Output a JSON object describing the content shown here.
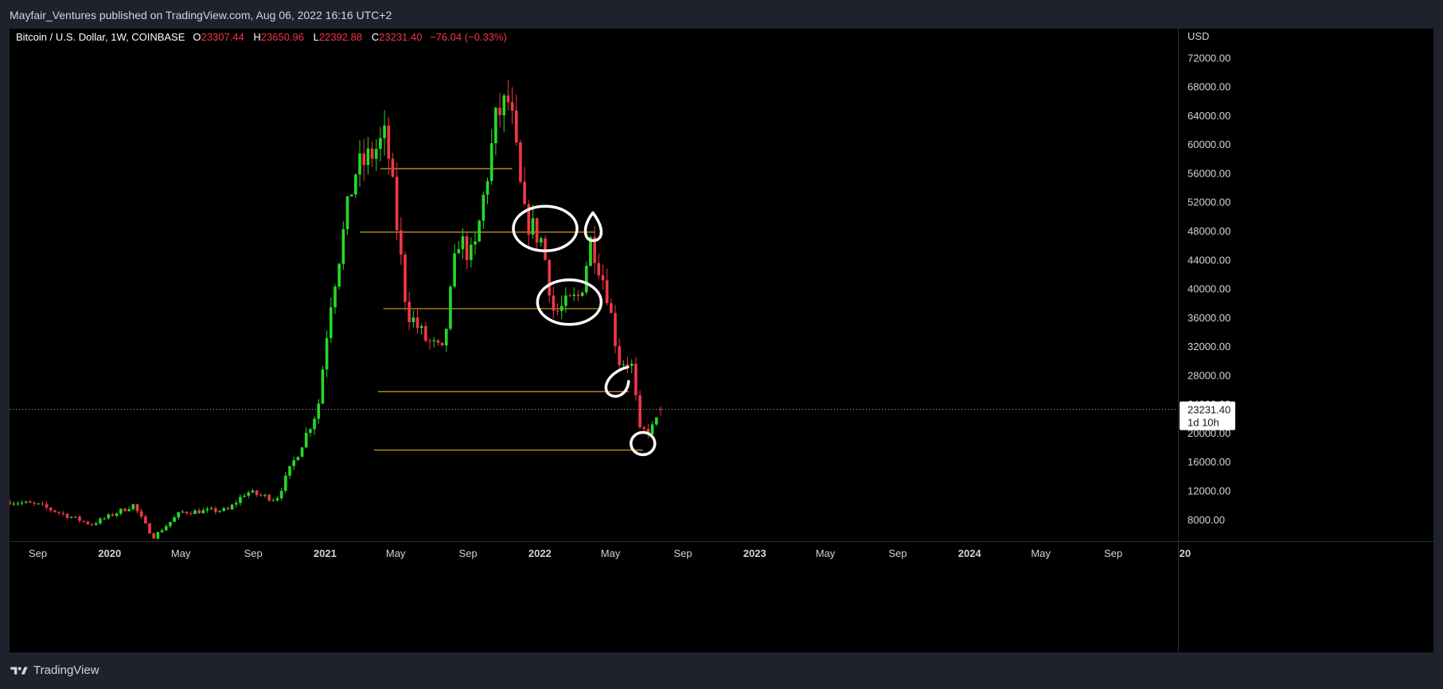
{
  "header": {
    "published": "Mayfair_Ventures published on TradingView.com, Aug 06, 2022 16:16 UTC+2"
  },
  "footer": {
    "brand": "TradingView"
  },
  "colors": {
    "up": "#26d926",
    "down": "#f23645",
    "level": "#c9a227",
    "axis_text": "#d1d4dc",
    "ohlc_value": "#f23645",
    "background": "#000000"
  },
  "chart_data": {
    "type": "candlestick",
    "legend": {
      "symbol": "Bitcoin / U.S. Dollar, 1W, COINBASE",
      "open_label": "O",
      "open": "23307.44",
      "high_label": "H",
      "high": "23650.96",
      "low_label": "L",
      "low": "22392.88",
      "close_label": "C",
      "close": "23231.40",
      "change": "−76.04 (−0.33%)"
    },
    "y_axis": {
      "currency": "USD",
      "range": [
        5000,
        76000
      ],
      "ticks": [
        "8000.00",
        "12000.00",
        "16000.00",
        "20000.00",
        "24000.00",
        "28000.00",
        "32000.00",
        "36000.00",
        "40000.00",
        "44000.00",
        "48000.00",
        "52000.00",
        "56000.00",
        "60000.00",
        "64000.00",
        "68000.00",
        "72000.00"
      ]
    },
    "x_axis": {
      "range": [
        "2019-07-15",
        "2024-12-20"
      ],
      "ticks": [
        {
          "date": "2019-09-01",
          "label": "Sep",
          "bold": false
        },
        {
          "date": "2020-01-01",
          "label": "2020",
          "bold": true
        },
        {
          "date": "2020-05-01",
          "label": "May",
          "bold": false
        },
        {
          "date": "2020-09-01",
          "label": "Sep",
          "bold": false
        },
        {
          "date": "2021-01-01",
          "label": "2021",
          "bold": true
        },
        {
          "date": "2021-05-01",
          "label": "May",
          "bold": false
        },
        {
          "date": "2021-09-01",
          "label": "Sep",
          "bold": false
        },
        {
          "date": "2022-01-01",
          "label": "2022",
          "bold": true
        },
        {
          "date": "2022-05-01",
          "label": "May",
          "bold": false
        },
        {
          "date": "2022-09-01",
          "label": "Sep",
          "bold": false
        },
        {
          "date": "2023-01-01",
          "label": "2023",
          "bold": true
        },
        {
          "date": "2023-05-01",
          "label": "May",
          "bold": false
        },
        {
          "date": "2023-09-01",
          "label": "Sep",
          "bold": false
        },
        {
          "date": "2024-01-01",
          "label": "2024",
          "bold": true
        },
        {
          "date": "2024-05-01",
          "label": "May",
          "bold": false
        },
        {
          "date": "2024-09-01",
          "label": "Sep",
          "bold": false
        },
        {
          "date": "2025-01-01",
          "label": "20",
          "bold": true
        }
      ]
    },
    "price_marker": {
      "price": 23231.4,
      "price_label": "23231.40",
      "countdown": "1d 10h"
    },
    "key_price_path": [
      {
        "date": "2019-07-15",
        "price": 10500
      },
      {
        "date": "2019-09-01",
        "price": 10000
      },
      {
        "date": "2019-12-01",
        "price": 7300
      },
      {
        "date": "2020-02-10",
        "price": 10000
      },
      {
        "date": "2020-03-15",
        "price": 5500
      },
      {
        "date": "2020-05-01",
        "price": 9000
      },
      {
        "date": "2020-07-20",
        "price": 9300
      },
      {
        "date": "2020-08-20",
        "price": 11800
      },
      {
        "date": "2020-10-10",
        "price": 10800
      },
      {
        "date": "2020-11-20",
        "price": 18000
      },
      {
        "date": "2020-12-20",
        "price": 23500
      },
      {
        "date": "2021-01-10",
        "price": 38000
      },
      {
        "date": "2021-02-20",
        "price": 56000
      },
      {
        "date": "2021-03-15",
        "price": 58000
      },
      {
        "date": "2021-04-15",
        "price": 61000
      },
      {
        "date": "2021-05-20",
        "price": 37000
      },
      {
        "date": "2021-06-20",
        "price": 33000
      },
      {
        "date": "2021-07-20",
        "price": 31000
      },
      {
        "date": "2021-08-15",
        "price": 47000
      },
      {
        "date": "2021-09-10",
        "price": 44000
      },
      {
        "date": "2021-10-20",
        "price": 64000
      },
      {
        "date": "2021-11-10",
        "price": 66000
      },
      {
        "date": "2021-12-05",
        "price": 50000
      },
      {
        "date": "2022-01-05",
        "price": 46500
      },
      {
        "date": "2022-01-25",
        "price": 36500
      },
      {
        "date": "2022-03-10",
        "price": 39000
      },
      {
        "date": "2022-03-29",
        "price": 47000
      },
      {
        "date": "2022-04-25",
        "price": 39500
      },
      {
        "date": "2022-05-15",
        "price": 30000
      },
      {
        "date": "2022-06-05",
        "price": 29800
      },
      {
        "date": "2022-06-20",
        "price": 20000
      },
      {
        "date": "2022-07-10",
        "price": 20500
      },
      {
        "date": "2022-07-31",
        "price": 23300
      }
    ],
    "levels": [
      {
        "price": 56600,
        "from": "2021-04-05",
        "to": "2021-11-15"
      },
      {
        "price": 47800,
        "from": "2021-03-01",
        "to": "2022-04-05"
      },
      {
        "price": 37200,
        "from": "2021-04-10",
        "to": "2022-04-15"
      },
      {
        "price": 25700,
        "from": "2021-04-01",
        "to": "2022-06-01"
      },
      {
        "price": 17600,
        "from": "2021-03-25",
        "to": "2022-06-25"
      }
    ],
    "annotations": [
      {
        "shape": "ellipse",
        "date": "2022-01-10",
        "price": 48300
      },
      {
        "shape": "drop",
        "date": "2022-04-01",
        "price": 48500
      },
      {
        "shape": "ellipse",
        "date": "2022-02-20",
        "price": 38100
      },
      {
        "shape": "hook",
        "date": "2022-05-10",
        "price": 26900
      },
      {
        "shape": "circle",
        "date": "2022-06-25",
        "price": 18500
      }
    ]
  }
}
